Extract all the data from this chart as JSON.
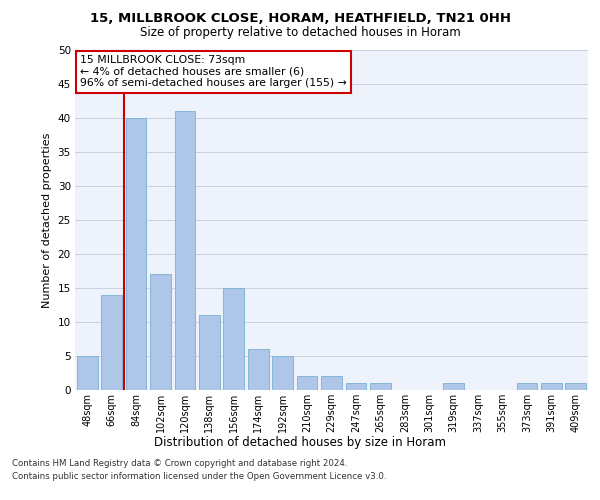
{
  "title1": "15, MILLBROOK CLOSE, HORAM, HEATHFIELD, TN21 0HH",
  "title2": "Size of property relative to detached houses in Horam",
  "xlabel": "Distribution of detached houses by size in Horam",
  "ylabel": "Number of detached properties",
  "categories": [
    "48sqm",
    "66sqm",
    "84sqm",
    "102sqm",
    "120sqm",
    "138sqm",
    "156sqm",
    "174sqm",
    "192sqm",
    "210sqm",
    "229sqm",
    "247sqm",
    "265sqm",
    "283sqm",
    "301sqm",
    "319sqm",
    "337sqm",
    "355sqm",
    "373sqm",
    "391sqm",
    "409sqm"
  ],
  "values": [
    5,
    14,
    40,
    17,
    41,
    11,
    15,
    6,
    5,
    2,
    2,
    1,
    1,
    0,
    0,
    1,
    0,
    0,
    1,
    1,
    1
  ],
  "bar_color": "#aec6e8",
  "bar_edgecolor": "#7ab0d4",
  "redline_index": 1,
  "redline_color": "#cc0000",
  "annotation_text": "15 MILLBROOK CLOSE: 73sqm\n← 4% of detached houses are smaller (6)\n96% of semi-detached houses are larger (155) →",
  "annotation_box_color": "#ffffff",
  "annotation_box_edgecolor": "#cc0000",
  "ylim": [
    0,
    50
  ],
  "yticks": [
    0,
    5,
    10,
    15,
    20,
    25,
    30,
    35,
    40,
    45,
    50
  ],
  "footer_line1": "Contains HM Land Registry data © Crown copyright and database right 2024.",
  "footer_line2": "Contains public sector information licensed under the Open Government Licence v3.0.",
  "bg_color": "#eef2fa",
  "grid_color": "#c8d0e0",
  "fig_width": 6.0,
  "fig_height": 5.0,
  "fig_dpi": 100
}
